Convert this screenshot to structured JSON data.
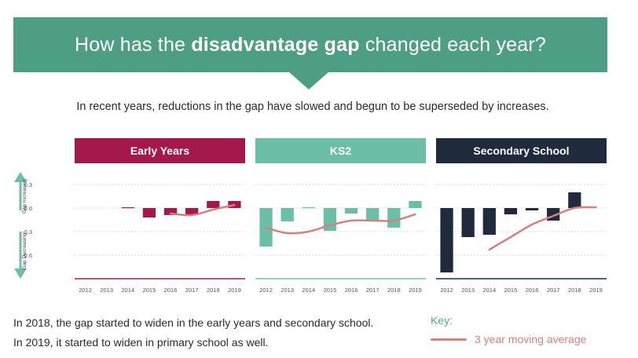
{
  "header": {
    "title_pre": "How has the ",
    "title_bold": "disadvantage gap",
    "title_post": " changed each year?"
  },
  "subtitle": "In recent years, reductions in the gap have slowed and begun to be superseded by increases.",
  "y_axis": {
    "upper_label": "Gap Increasing",
    "lower_label": "Gap Decreasing",
    "ticks": [
      "0.3",
      "-0.0",
      "-0.3",
      "-0.6"
    ]
  },
  "colors": {
    "early_years": "#a4184b",
    "ks2": "#6cbfa6",
    "secondary": "#1f2b3c",
    "moving_average": "#d4827f",
    "banner": "#4e9e84",
    "arrow": "#6cbfa6"
  },
  "chart_data": [
    {
      "type": "bar",
      "title": "Early Years",
      "categories": [
        "2012",
        "2013",
        "2014",
        "2015",
        "2016",
        "2017",
        "2018",
        "2019"
      ],
      "series": [
        {
          "values": [
            null,
            null,
            0.01,
            -0.12,
            -0.09,
            -0.09,
            0.09,
            0.09
          ]
        }
      ],
      "moving_average": {
        "name": "3 year moving average",
        "values": [
          null,
          null,
          null,
          null,
          -0.07,
          -0.09,
          -0.02,
          0.04
        ]
      },
      "ylim": [
        -0.9,
        0.47
      ]
    },
    {
      "type": "bar",
      "title": "KS2",
      "categories": [
        "2012",
        "2013",
        "2014",
        "2015",
        "2016",
        "2017",
        "2018",
        "2019"
      ],
      "series": [
        {
          "values": [
            -0.49,
            -0.17,
            0.01,
            -0.29,
            -0.07,
            -0.16,
            -0.25,
            0.09
          ]
        }
      ],
      "moving_average": {
        "name": "3 year moving average",
        "values": [
          -0.25,
          -0.32,
          -0.3,
          -0.22,
          -0.16,
          -0.16,
          -0.16,
          -0.08
        ]
      },
      "ylim": [
        -0.9,
        0.47
      ]
    },
    {
      "type": "bar",
      "title": "Secondary School",
      "categories": [
        "2012",
        "2013",
        "2014",
        "2015",
        "2016",
        "2017",
        "2018",
        "2019"
      ],
      "series": [
        {
          "values": [
            -0.82,
            -0.37,
            -0.34,
            -0.08,
            -0.03,
            -0.16,
            0.2,
            null
          ]
        }
      ],
      "moving_average": {
        "name": "3 year moving average",
        "values": [
          null,
          null,
          -0.53,
          -0.37,
          -0.21,
          -0.1,
          0.0,
          0.01
        ]
      },
      "ylim": [
        -0.9,
        0.47
      ]
    }
  ],
  "footnotes": [
    "In 2018, the gap started to widen in the early years and secondary school.",
    "In 2019, it started to widen in primary school as well."
  ],
  "key": {
    "title": "Key:",
    "label": "3 year moving average"
  }
}
